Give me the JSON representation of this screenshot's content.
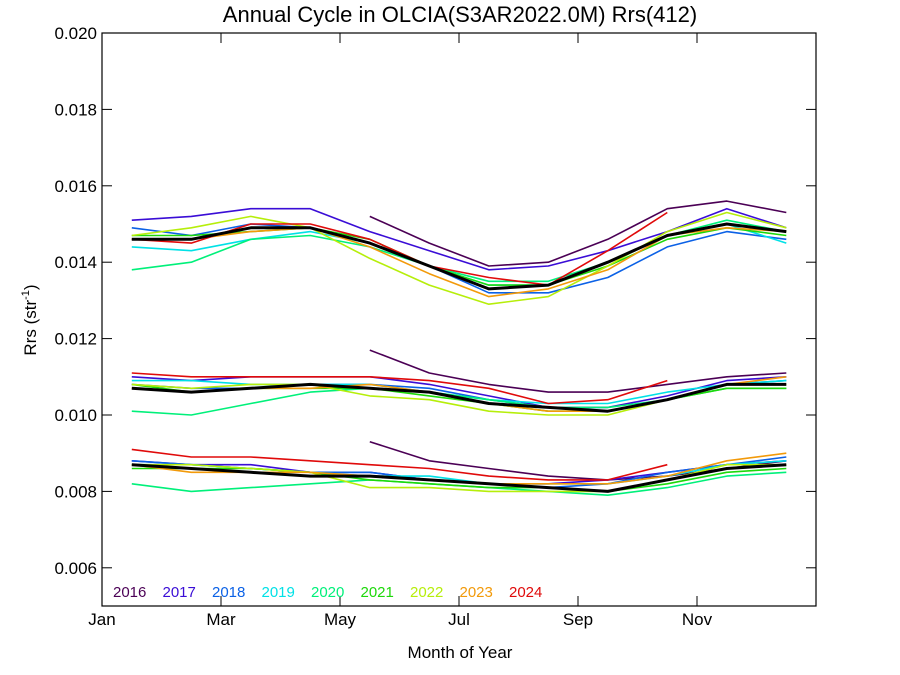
{
  "chart_data": {
    "type": "line",
    "title": "Annual Cycle in OLCIA(S3AR2022.0M) Rrs(412)",
    "xlabel": "Month of Year",
    "ylabel": "Rrs (str",
    "ylabel_sup": "-1",
    "ylabel_close": ")",
    "xlim": [
      1,
      13
    ],
    "ylim": [
      0.005,
      0.02
    ],
    "xticks": [
      {
        "value": 1,
        "label": "Jan"
      },
      {
        "value": 3,
        "label": "Mar"
      },
      {
        "value": 5,
        "label": "May"
      },
      {
        "value": 7,
        "label": "Jul"
      },
      {
        "value": 9,
        "label": "Sep"
      },
      {
        "value": 11,
        "label": "Nov"
      }
    ],
    "yticks": [
      {
        "value": 0.006,
        "label": "0.006"
      },
      {
        "value": 0.008,
        "label": "0.008"
      },
      {
        "value": 0.01,
        "label": "0.010"
      },
      {
        "value": 0.012,
        "label": "0.012"
      },
      {
        "value": 0.014,
        "label": "0.014"
      },
      {
        "value": 0.016,
        "label": "0.016"
      },
      {
        "value": 0.018,
        "label": "0.018"
      },
      {
        "value": 0.02,
        "label": "0.020"
      }
    ],
    "grid": false,
    "legend_position": "bottom-left",
    "x": [
      1.5,
      2.5,
      3.5,
      4.5,
      5.5,
      6.5,
      7.5,
      8.5,
      9.5,
      10.5,
      11.5,
      12.5
    ],
    "series": [
      {
        "name": "2016",
        "color": "#4b0055",
        "upper": [
          null,
          null,
          null,
          null,
          0.0152,
          0.0145,
          0.0139,
          0.014,
          0.0146,
          0.0154,
          0.0156,
          0.0153
        ],
        "middle": [
          null,
          null,
          null,
          null,
          0.0117,
          0.0111,
          0.0108,
          0.0106,
          0.0106,
          0.0108,
          0.011,
          0.0111
        ],
        "lower": [
          null,
          null,
          null,
          null,
          0.0093,
          0.0088,
          0.0086,
          0.0084,
          0.0083,
          0.0084,
          0.0086,
          0.0088
        ]
      },
      {
        "name": "2017",
        "color": "#3a0dd6",
        "upper": [
          0.0151,
          0.0152,
          0.0154,
          0.0154,
          0.0148,
          0.0143,
          0.0138,
          0.0139,
          0.0143,
          0.0148,
          0.0154,
          0.0149
        ],
        "middle": [
          0.011,
          0.0109,
          0.011,
          0.011,
          0.011,
          0.0108,
          0.0105,
          0.0102,
          0.0102,
          0.0105,
          0.0109,
          0.011
        ],
        "lower": [
          0.0088,
          0.0087,
          0.0087,
          0.0085,
          0.0085,
          0.0083,
          0.0082,
          0.0082,
          0.0083,
          0.0085,
          0.0087,
          0.0088
        ]
      },
      {
        "name": "2018",
        "color": "#0b61e6",
        "upper": [
          0.0149,
          0.0147,
          0.015,
          0.0149,
          0.0145,
          0.0139,
          0.0132,
          0.0132,
          0.0136,
          0.0144,
          0.0148,
          0.0146
        ],
        "middle": [
          0.0108,
          0.0107,
          0.0107,
          0.0108,
          0.0108,
          0.0107,
          0.0104,
          0.0102,
          0.0101,
          0.0104,
          0.0108,
          0.0109
        ],
        "lower": [
          0.0088,
          0.0087,
          0.0086,
          0.0085,
          0.0085,
          0.0083,
          0.0082,
          0.0081,
          0.0082,
          0.0085,
          0.0087,
          0.0089
        ]
      },
      {
        "name": "2019",
        "color": "#00e1e6",
        "upper": [
          0.0144,
          0.0143,
          0.0146,
          0.0148,
          0.0145,
          0.0139,
          0.0134,
          0.0134,
          0.014,
          0.0147,
          0.015,
          0.0145
        ],
        "middle": [
          0.0109,
          0.0109,
          0.0108,
          0.0108,
          0.0108,
          0.0106,
          0.0104,
          0.0103,
          0.0103,
          0.0106,
          0.0108,
          0.0109
        ],
        "lower": [
          0.0087,
          0.0087,
          0.0086,
          0.0085,
          0.0084,
          0.0084,
          0.0082,
          0.0082,
          0.0082,
          0.0084,
          0.0087,
          0.0088
        ]
      },
      {
        "name": "2020",
        "color": "#00f07a",
        "upper": [
          0.0138,
          0.014,
          0.0146,
          0.0147,
          0.0144,
          0.0139,
          0.0135,
          0.0135,
          0.014,
          0.0147,
          0.0151,
          0.0148
        ],
        "middle": [
          0.0101,
          0.01,
          0.0103,
          0.0106,
          0.0107,
          0.0106,
          0.0104,
          0.0102,
          0.0102,
          0.0104,
          0.0107,
          0.0107
        ],
        "lower": [
          0.0082,
          0.008,
          0.0081,
          0.0082,
          0.0083,
          0.0082,
          0.0081,
          0.008,
          0.0079,
          0.0081,
          0.0084,
          0.0085
        ]
      },
      {
        "name": "2021",
        "color": "#1ed80a",
        "upper": [
          0.0147,
          0.0147,
          0.0148,
          0.0149,
          0.0146,
          0.0139,
          0.0134,
          0.0134,
          0.0139,
          0.0146,
          0.0149,
          0.0147
        ],
        "middle": [
          0.0108,
          0.0106,
          0.0107,
          0.0107,
          0.0107,
          0.0105,
          0.0103,
          0.0101,
          0.0101,
          0.0104,
          0.0107,
          0.0107
        ],
        "lower": [
          0.0086,
          0.0086,
          0.0086,
          0.0085,
          0.0083,
          0.0082,
          0.0081,
          0.0081,
          0.008,
          0.0082,
          0.0085,
          0.0086
        ]
      },
      {
        "name": "2022",
        "color": "#b6ee0a",
        "upper": [
          0.0147,
          0.0149,
          0.0152,
          0.0149,
          0.0141,
          0.0134,
          0.0129,
          0.0131,
          0.0139,
          0.0148,
          0.0153,
          0.0149
        ],
        "middle": [
          0.0108,
          0.0107,
          0.0108,
          0.0108,
          0.0105,
          0.0104,
          0.0101,
          0.01,
          0.01,
          0.0104,
          0.0108,
          0.0108
        ],
        "lower": [
          0.0087,
          0.0087,
          0.0086,
          0.0085,
          0.0081,
          0.0081,
          0.008,
          0.008,
          0.008,
          0.0083,
          0.0087,
          0.0087
        ]
      },
      {
        "name": "2023",
        "color": "#f29a0a",
        "upper": [
          0.0146,
          0.0146,
          0.0148,
          0.0149,
          0.0144,
          0.0137,
          0.0131,
          0.0133,
          0.0138,
          0.0147,
          0.0149,
          0.0148
        ],
        "middle": [
          0.0107,
          0.0106,
          0.0107,
          0.0107,
          0.0108,
          0.0106,
          0.0103,
          0.0101,
          0.0101,
          0.0104,
          0.0108,
          0.011
        ],
        "lower": [
          0.0087,
          0.0085,
          0.0085,
          0.0085,
          0.0084,
          0.0083,
          0.0082,
          0.0082,
          0.0082,
          0.0084,
          0.0088,
          0.009
        ]
      },
      {
        "name": "2024",
        "color": "#e00a0a",
        "upper": [
          0.0146,
          0.0145,
          0.015,
          0.015,
          0.0146,
          0.0139,
          0.0136,
          0.0134,
          0.0143,
          0.0153,
          null,
          null
        ],
        "middle": [
          0.0111,
          0.011,
          0.011,
          0.011,
          0.011,
          0.0109,
          0.0107,
          0.0103,
          0.0104,
          0.0109,
          null,
          null
        ],
        "lower": [
          0.0091,
          0.0089,
          0.0089,
          0.0088,
          0.0087,
          0.0086,
          0.0084,
          0.0083,
          0.0083,
          0.0087,
          null,
          null
        ]
      }
    ],
    "mean_series": {
      "color": "#000000",
      "upper": [
        0.0146,
        0.0146,
        0.0149,
        0.0149,
        0.0145,
        0.0139,
        0.0133,
        0.0134,
        0.014,
        0.0147,
        0.015,
        0.0148
      ],
      "middle": [
        0.0107,
        0.0106,
        0.0107,
        0.0108,
        0.0107,
        0.0106,
        0.0103,
        0.0102,
        0.0101,
        0.0104,
        0.0108,
        0.0108
      ],
      "lower": [
        0.0087,
        0.0086,
        0.0085,
        0.0084,
        0.0084,
        0.0083,
        0.0082,
        0.0081,
        0.008,
        0.0083,
        0.0086,
        0.0087
      ]
    }
  }
}
